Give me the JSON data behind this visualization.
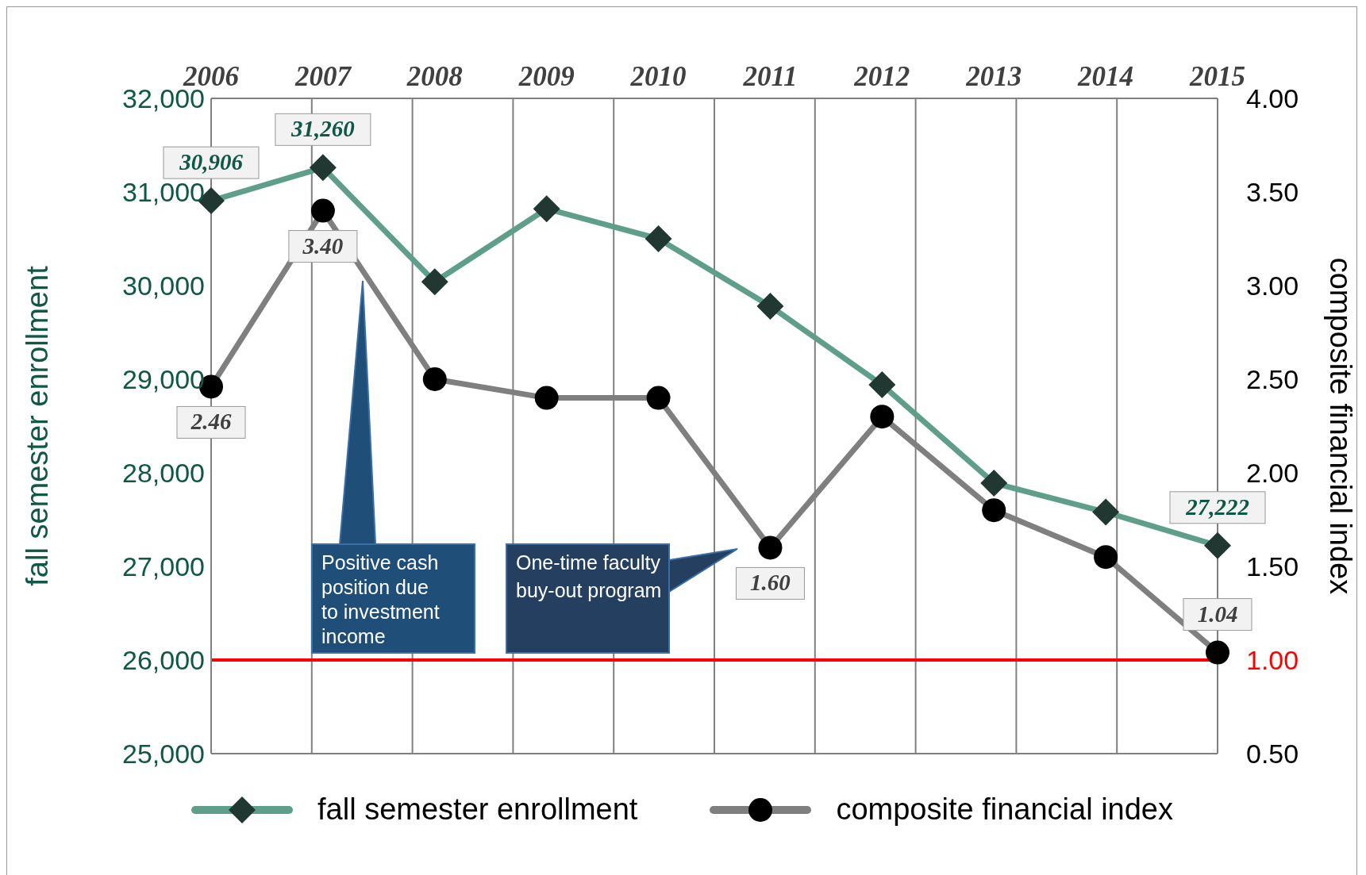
{
  "chart_data": {
    "type": "line",
    "categories": [
      "2006",
      "2007",
      "2008",
      "2009",
      "2010",
      "2011",
      "2012",
      "2013",
      "2014",
      "2015"
    ],
    "ylabel": "fall semester enrollment",
    "y2label": "composite financial index",
    "ylim": [
      25000,
      32000
    ],
    "yticks": [
      {
        "value": 25000,
        "label": "25,000"
      },
      {
        "value": 26000,
        "label": "26,000"
      },
      {
        "value": 27000,
        "label": "27,000"
      },
      {
        "value": 28000,
        "label": "28,000"
      },
      {
        "value": 29000,
        "label": "29,000"
      },
      {
        "value": 30000,
        "label": "30,000"
      },
      {
        "value": 31000,
        "label": "31,000"
      },
      {
        "value": 32000,
        "label": "32,000"
      }
    ],
    "y2lim": [
      0.5,
      4
    ],
    "y2ticks": [
      {
        "value": 0.5,
        "label": "0.50"
      },
      {
        "value": 1,
        "label": "1.00"
      },
      {
        "value": 1.5,
        "label": "1.50"
      },
      {
        "value": 2,
        "label": "2.00"
      },
      {
        "value": 2.5,
        "label": "2.50"
      },
      {
        "value": 3,
        "label": "3.00"
      },
      {
        "value": 3.5,
        "label": "3.50"
      },
      {
        "value": 4,
        "label": "4.00"
      }
    ],
    "grid": true,
    "legend": "bottom",
    "series": [
      {
        "name": "fall semester enrollment",
        "color": "#5e9e8b",
        "marker": "diamond",
        "values": [
          30906,
          31260,
          30040,
          30820,
          30500,
          29780,
          28940,
          27890,
          27580,
          27222
        ],
        "value_labels": [
          "30,906",
          "31,260",
          null,
          null,
          null,
          null,
          null,
          null,
          null,
          "27,222"
        ]
      },
      {
        "name": "composite financial index",
        "color": "#7f7f7f",
        "marker": "circle",
        "axis": "y2",
        "values": [
          2.46,
          3.4,
          2.5,
          2.4,
          2.4,
          1.6,
          2.3,
          1.8,
          1.55,
          1.04
        ],
        "value_labels": [
          "2.46",
          "3.40",
          null,
          null,
          null,
          "1.60",
          null,
          null,
          null,
          "1.04"
        ]
      }
    ],
    "ref_lines": [
      {
        "axis": "y2",
        "value": 1,
        "color": "#ff0000"
      }
    ],
    "annotations": [
      "Positive cash position due to investment income",
      "One-time faculty buy-out program"
    ]
  }
}
